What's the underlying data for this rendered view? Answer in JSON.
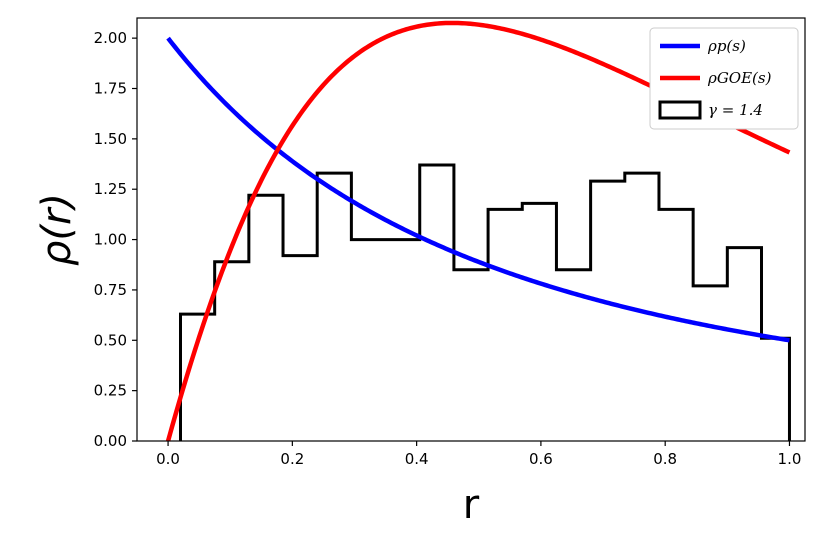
{
  "chart_data": {
    "type": "line",
    "xlabel": "r",
    "ylabel": "ρ(r)",
    "xlim": [
      -0.05,
      1.025
    ],
    "ylim": [
      0,
      2.1
    ],
    "xticks": [
      "0.0",
      "0.2",
      "0.4",
      "0.6",
      "0.8",
      "1.0"
    ],
    "yticks": [
      "0.00",
      "0.25",
      "0.50",
      "0.75",
      "1.00",
      "1.25",
      "1.50",
      "1.75",
      "2.00"
    ],
    "grid": false,
    "legend_position": "top-right",
    "series": [
      {
        "name": "ρp(s)",
        "color": "#0000ff",
        "formula": "2/(1+r)^2"
      },
      {
        "name": "ρGOE(s)",
        "color": "#ff0000",
        "formula": "(81√3/(4π))·(r+r²)/(1+r+r²)^(5/2)"
      }
    ],
    "histogram": {
      "name": "γ = 1.4",
      "color": "#000000",
      "bin_edges": [
        0.02,
        0.075,
        0.13,
        0.185,
        0.24,
        0.295,
        0.35,
        0.405,
        0.46,
        0.515,
        0.57,
        0.625,
        0.68,
        0.735,
        0.79,
        0.845,
        0.9,
        0.955,
        1.0
      ],
      "counts": [
        0.63,
        0.89,
        1.22,
        0.92,
        1.33,
        1.0,
        1.0,
        1.37,
        0.85,
        1.15,
        1.18,
        0.85,
        1.29,
        1.33,
        1.15,
        0.77,
        0.96,
        0.51
      ]
    },
    "legend": [
      {
        "label": "ρp(s)",
        "color": "#0000ff",
        "kind": "line"
      },
      {
        "label": "ρGOE(s)",
        "color": "#ff0000",
        "kind": "line"
      },
      {
        "label": "γ = 1.4",
        "color": "#000000",
        "kind": "patch"
      }
    ]
  }
}
